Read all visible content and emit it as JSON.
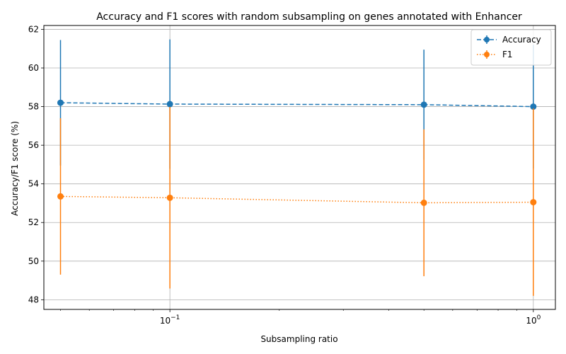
{
  "chart_data": {
    "type": "line",
    "title": "Accuracy and F1 scores with random subsampling on genes annotated with Enhancer",
    "xlabel": "Subsampling ratio",
    "ylabel": "Accuracy/F1 score (%)",
    "xscale": "log",
    "xlim": [
      0.045,
      1.15
    ],
    "ylim": [
      47.5,
      62.2
    ],
    "x_major_ticks": [
      {
        "value": 0.1,
        "base": "10",
        "exp": "−1"
      },
      {
        "value": 1,
        "base": "10",
        "exp": "0"
      }
    ],
    "y_ticks": [
      48,
      50,
      52,
      54,
      56,
      58,
      60,
      62
    ],
    "grid": true,
    "legend_position": "top-right",
    "x": [
      0.05,
      0.1,
      0.5,
      1.0
    ],
    "series": [
      {
        "name": "Accuracy",
        "color": "#1f77b4",
        "line_style": "dashed",
        "values": [
          58.2,
          58.13,
          58.1,
          58.0
        ],
        "error": [
          3.25,
          3.35,
          2.85,
          3.2
        ]
      },
      {
        "name": "F1",
        "color": "#ff7f0e",
        "line_style": "dotted",
        "values": [
          53.35,
          53.28,
          53.02,
          53.05
        ],
        "error": [
          4.05,
          4.7,
          3.8,
          4.85
        ]
      }
    ]
  }
}
